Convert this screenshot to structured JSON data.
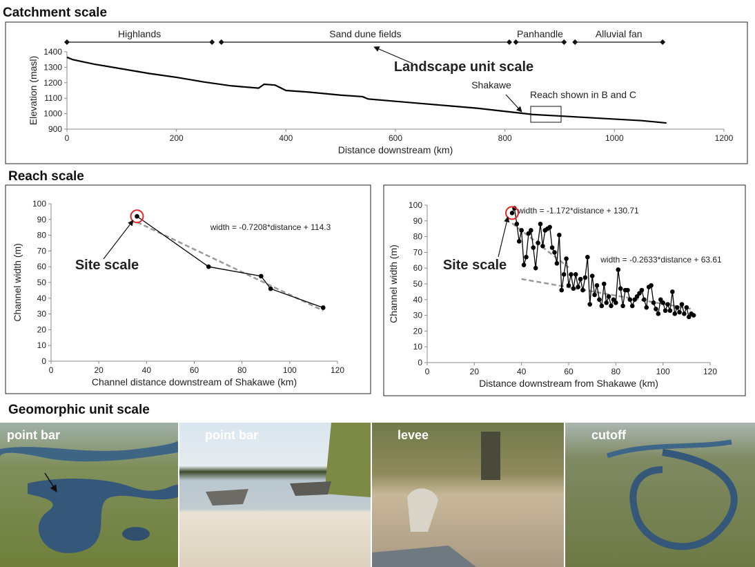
{
  "sections": [
    "Catchment scale",
    "Reach scale",
    "Geomorphic unit scale"
  ],
  "photos": [
    "point bar",
    "point bar",
    "levee",
    "cutoff"
  ],
  "chart_data": [
    {
      "type": "line",
      "xlabel": "Distance downstream (km)",
      "ylabel": "Elevation (masl)",
      "x": [
        0,
        10,
        50,
        100,
        150,
        200,
        250,
        270,
        300,
        350,
        360,
        380,
        400,
        440,
        500,
        540,
        550,
        600,
        650,
        700,
        750,
        800,
        850,
        900,
        950,
        1000,
        1050,
        1095
      ],
      "series": [
        {
          "color": "#000000",
          "values": [
            1365,
            1350,
            1320,
            1290,
            1260,
            1235,
            1205,
            1195,
            1180,
            1165,
            1190,
            1185,
            1150,
            1140,
            1120,
            1110,
            1095,
            1080,
            1065,
            1050,
            1035,
            1015,
            995,
            985,
            975,
            965,
            955,
            940
          ]
        }
      ],
      "xlim": [
        0,
        1200
      ],
      "xticks": [
        0,
        200,
        400,
        600,
        800,
        1000,
        1200
      ],
      "ylim": [
        900,
        1400
      ],
      "yticks": [
        900,
        1000,
        1100,
        1200,
        1300,
        1400
      ],
      "units": [
        {
          "label": "Highlands",
          "start": 0,
          "end": 265
        },
        {
          "label": "Sand dune fields",
          "start": 282,
          "end": 808
        },
        {
          "label": "Panhandle",
          "start": 820,
          "end": 908
        },
        {
          "label": "Alluvial fan",
          "start": 928,
          "end": 1088
        }
      ],
      "callouts": [
        "Landscape unit scale",
        "Shakawe",
        "Reach shown in B and C"
      ]
    },
    {
      "type": "line",
      "markers": true,
      "xlabel": "Channel distance downstream of Shakawe (km)",
      "ylabel": "Channel width (m)",
      "x": [
        36,
        66,
        88,
        92,
        114
      ],
      "series": [
        {
          "color": "#000000",
          "values": [
            92,
            60,
            54,
            46,
            34
          ]
        }
      ],
      "trendlines": [
        {
          "label": "width = -0.7208*distance + 114.3",
          "x": [
            36,
            114
          ],
          "values": [
            88.35,
            32.13
          ]
        }
      ],
      "xlim": [
        0,
        120
      ],
      "xticks": [
        0,
        20,
        40,
        60,
        80,
        100,
        120
      ],
      "ylim": [
        0,
        100
      ],
      "yticks": [
        0,
        10,
        20,
        30,
        40,
        50,
        60,
        70,
        80,
        90,
        100
      ],
      "callouts": [
        "Site scale"
      ]
    },
    {
      "type": "line",
      "markers": true,
      "xlabel": "Distance downstream from Shakawe (km)",
      "ylabel": "Channel width (m)",
      "x": [
        36,
        37,
        38,
        39,
        40,
        41,
        42,
        43,
        44,
        45,
        46,
        47,
        48,
        49,
        50,
        51,
        52,
        53,
        54,
        55,
        56,
        57,
        58,
        59,
        60,
        61,
        62,
        63,
        64,
        65,
        66,
        67,
        68,
        69,
        70,
        71,
        72,
        73,
        74,
        75,
        76,
        77,
        78,
        79,
        80,
        81,
        82,
        83,
        84,
        85,
        86,
        87,
        88,
        89,
        90,
        91,
        92,
        93,
        94,
        95,
        96,
        97,
        98,
        99,
        100,
        101,
        102,
        103,
        104,
        105,
        106,
        107,
        108,
        109,
        110,
        111,
        112,
        113
      ],
      "series": [
        {
          "color": "#000000",
          "values": [
            95,
            98,
            88,
            77,
            84,
            62,
            67,
            82,
            84,
            73,
            60,
            76,
            88,
            74,
            84,
            85,
            86,
            73,
            70,
            63,
            81,
            46,
            56,
            66,
            49,
            56,
            47,
            56,
            48,
            53,
            46,
            54,
            67,
            37,
            55,
            43,
            49,
            40,
            36,
            50,
            38,
            42,
            36,
            40,
            38,
            59,
            47,
            36,
            46,
            46,
            40,
            36,
            40,
            42,
            44,
            46,
            40,
            35,
            48,
            49,
            38,
            34,
            31,
            40,
            38,
            33,
            37,
            33,
            45,
            31,
            35,
            32,
            37,
            31,
            35,
            29,
            31,
            30
          ]
        }
      ],
      "trendlines": [
        {
          "label": "width = -1.172*distance + 130.71",
          "x": [
            36,
            60
          ],
          "values": [
            88.52,
            60.39
          ]
        },
        {
          "label": "width = -0.2633*distance + 63.61",
          "x": [
            40,
            113
          ],
          "values": [
            53.08,
            33.86
          ]
        }
      ],
      "xlim": [
        0,
        120
      ],
      "xticks": [
        0,
        20,
        40,
        60,
        80,
        100,
        120
      ],
      "ylim": [
        0,
        100
      ],
      "yticks": [
        0,
        10,
        20,
        30,
        40,
        50,
        60,
        70,
        80,
        90,
        100
      ],
      "callouts": [
        "Site scale"
      ]
    }
  ]
}
